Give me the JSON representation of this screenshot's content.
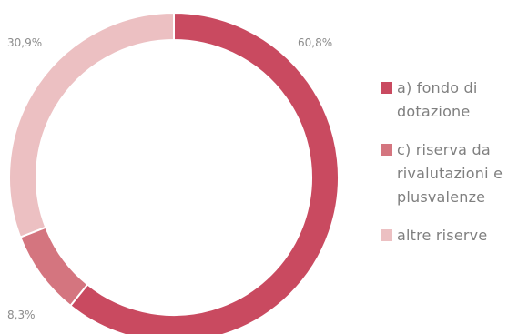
{
  "chart_data": {
    "type": "pie",
    "donut": true,
    "categories": [
      "a) fondo di dotazione",
      "c) riserva da rivalutazioni e plusvalenze",
      "altre riserve"
    ],
    "values": [
      60.8,
      8.3,
      30.9
    ],
    "value_labels": [
      "60,8%",
      "8,3%",
      "30,9%"
    ],
    "colors": [
      "#c94a60",
      "#d4757f",
      "#ecc0c2"
    ],
    "legend_position": "right",
    "title": ""
  }
}
